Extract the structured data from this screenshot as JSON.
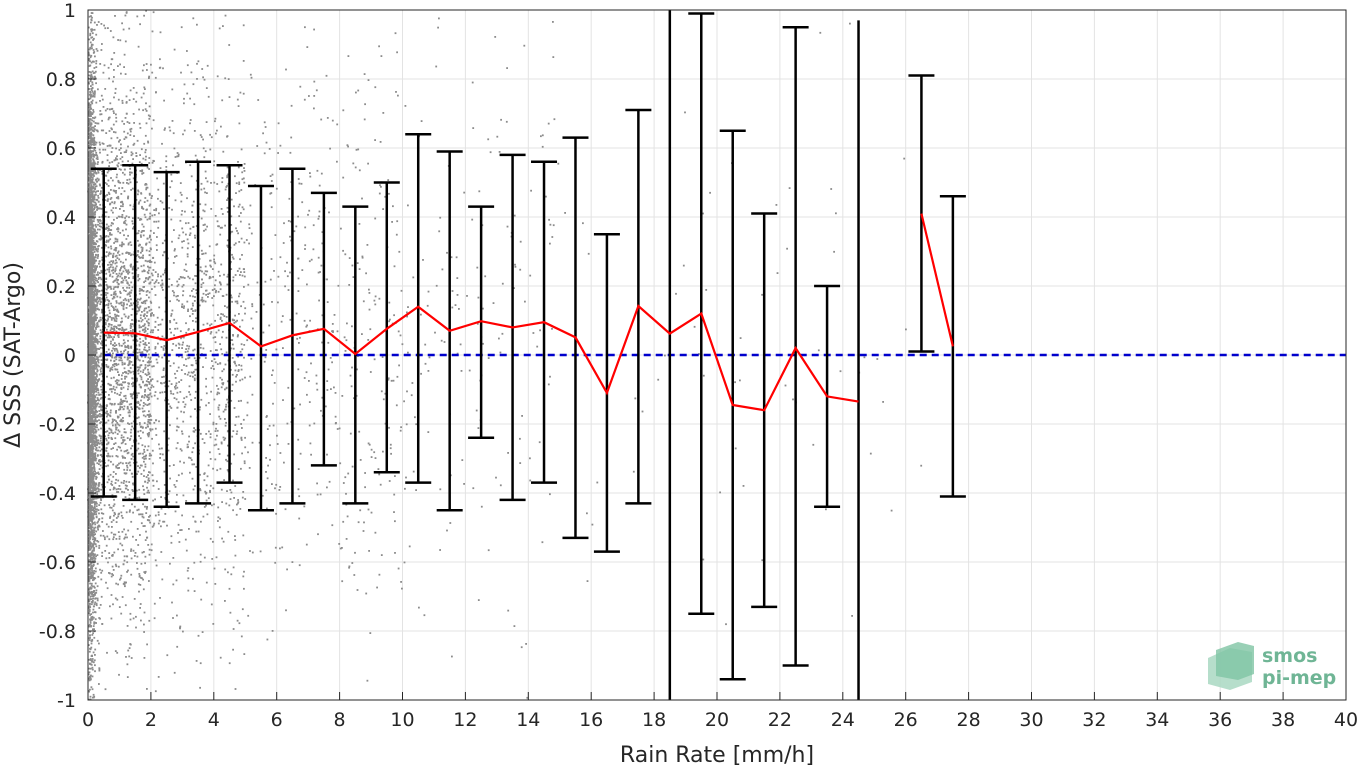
{
  "chart_data": {
    "type": "scatter",
    "xlabel": "Rain Rate [mm/h]",
    "ylabel": "Δ SSS (SAT-Argo)",
    "xlim": [
      0,
      40
    ],
    "ylim": [
      -1,
      1
    ],
    "x_ticks": [
      0,
      2,
      4,
      6,
      8,
      10,
      12,
      14,
      16,
      18,
      20,
      22,
      24,
      26,
      28,
      30,
      32,
      34,
      36,
      38,
      40
    ],
    "x_tick_labels": [
      "0",
      "2",
      "4",
      "6",
      "8",
      "10",
      "12",
      "14",
      "16",
      "18",
      "20",
      "22",
      "24",
      "26",
      "28",
      "30",
      "32",
      "34",
      "36",
      "38",
      "40"
    ],
    "y_ticks": [
      -1,
      -0.8,
      -0.6,
      -0.4,
      -0.2,
      0,
      0.2,
      0.4,
      0.6,
      0.8,
      1
    ],
    "y_tick_labels": [
      "-1",
      "-0.8",
      "-0.6",
      "-0.4",
      "-0.2",
      "0",
      "0.2",
      "0.4",
      "0.6",
      "0.8",
      "1"
    ],
    "grid": true,
    "reference_line": {
      "y": 0,
      "style": "dashed",
      "color": "#0000cc"
    },
    "series": [
      {
        "kind": "errorbar",
        "color": "#000000",
        "x": [
          0.5,
          1.5,
          2.5,
          3.5,
          4.5,
          5.5,
          6.5,
          7.5,
          8.5,
          9.5,
          10.5,
          11.5,
          12.5,
          13.5,
          14.5,
          15.5,
          16.5,
          17.5,
          18.5,
          19.5,
          20.5,
          21.5,
          22.5,
          23.5,
          24.5,
          26.5,
          27.5
        ],
        "lower": [
          -0.41,
          -0.42,
          -0.44,
          -0.43,
          -0.37,
          -0.45,
          -0.43,
          -0.32,
          -0.43,
          -0.34,
          -0.37,
          -0.45,
          -0.24,
          -0.42,
          -0.37,
          -0.53,
          -0.57,
          -0.43,
          -1.2,
          -0.75,
          -0.94,
          -0.73,
          -0.9,
          -0.44,
          -1.2,
          0.01,
          -0.41
        ],
        "upper": [
          0.54,
          0.55,
          0.53,
          0.56,
          0.55,
          0.49,
          0.54,
          0.47,
          0.43,
          0.5,
          0.64,
          0.59,
          0.43,
          0.58,
          0.56,
          0.63,
          0.35,
          0.71,
          1.2,
          0.99,
          0.65,
          0.41,
          0.95,
          0.2,
          0.97,
          0.81,
          0.46
        ],
        "capped": [
          true,
          true,
          true,
          true,
          true,
          true,
          true,
          true,
          true,
          true,
          true,
          true,
          true,
          true,
          true,
          true,
          true,
          true,
          false,
          true,
          true,
          true,
          true,
          true,
          false,
          true,
          true
        ]
      },
      {
        "kind": "line",
        "color": "#ff0000",
        "x": [
          0.5,
          1.5,
          2.5,
          3.5,
          4.5,
          5.5,
          6.5,
          7.5,
          8.5,
          9.5,
          10.5,
          11.5,
          12.5,
          13.5,
          14.5,
          15.5,
          16.5,
          17.5,
          18.5,
          19.5,
          20.5,
          21.5,
          22.5,
          23.5,
          24.5,
          null,
          26.5,
          27.5
        ],
        "y": [
          0.065,
          0.063,
          0.043,
          0.067,
          0.093,
          0.025,
          0.057,
          0.076,
          0.003,
          0.076,
          0.14,
          0.07,
          0.098,
          0.08,
          0.095,
          0.051,
          -0.11,
          0.142,
          0.062,
          0.12,
          -0.145,
          -0.16,
          0.02,
          -0.12,
          -0.135,
          null,
          0.41,
          0.025
        ]
      },
      {
        "kind": "scatter",
        "color": "#8c8c8c",
        "x_range": [
          0,
          28
        ],
        "y_range": [
          -1,
          1
        ],
        "note_density": "very dense near 0–2 mm/h, sparse beyond 15 mm/h"
      }
    ]
  },
  "logo": {
    "line1": "smos",
    "line2": "pi-mep"
  }
}
